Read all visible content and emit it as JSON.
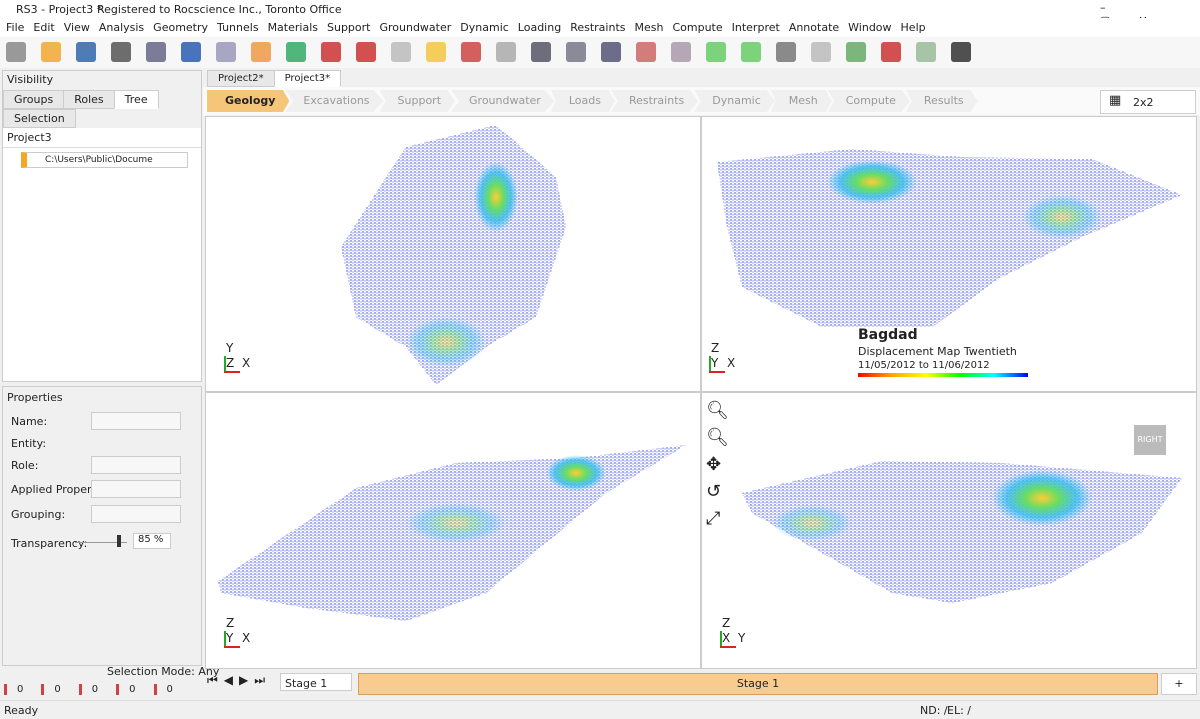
{
  "title_bar": {
    "title": "RS3 - Project3 *",
    "registration": "Registered to Rocscience Inc., Toronto Office"
  },
  "menu": [
    "File",
    "Edit",
    "View",
    "Analysis",
    "Geometry",
    "Tunnels",
    "Materials",
    "Support",
    "Groundwater",
    "Dynamic",
    "Loading",
    "Restraints",
    "Mesh",
    "Compute",
    "Interpret",
    "Annotate",
    "Window",
    "Help"
  ],
  "visibility": {
    "title": "Visibility",
    "tabs": [
      "Groups",
      "Roles",
      "Tree",
      "Selection"
    ],
    "project": "Project3",
    "item": "C:\\Users\\Public\\Docume"
  },
  "properties": {
    "title": "Properties",
    "fields": [
      "Name:",
      "Entity:",
      "Role:",
      "Applied Property:",
      "Grouping:"
    ],
    "transparency_label": "Transparency:",
    "transparency_value": "85 %"
  },
  "selection": {
    "mode": "Selection Mode: Any",
    "counts": [
      "0",
      "0",
      "0",
      "0",
      "0"
    ]
  },
  "document_tabs": [
    "Project2*",
    "Project3*"
  ],
  "workflow_tabs": [
    "Geology",
    "Excavations",
    "Support",
    "Groundwater",
    "Loads",
    "Restraints",
    "Dynamic",
    "Mesh",
    "Compute",
    "Results"
  ],
  "layout": "2x2",
  "viewports": [
    {
      "axes": [
        "Y",
        "Z",
        "X"
      ]
    },
    {
      "axes": [
        "Z",
        "Y",
        "X"
      ]
    },
    {
      "axes": [
        "Z",
        "Y",
        "X"
      ]
    },
    {
      "axes": [
        "Z",
        "X",
        "Y"
      ]
    }
  ],
  "legend": {
    "title": "Bagdad",
    "subtitle": "Displacement Map Twentieth",
    "dates": "11/05/2012 to 11/06/2012"
  },
  "view_cube": "RIGHT",
  "stage_bar": {
    "dropdown": "Stage 1",
    "stage": "Stage 1",
    "add": "+"
  },
  "status_bar": {
    "status": "Ready",
    "nd": "ND: /",
    "el": "EL: /"
  }
}
